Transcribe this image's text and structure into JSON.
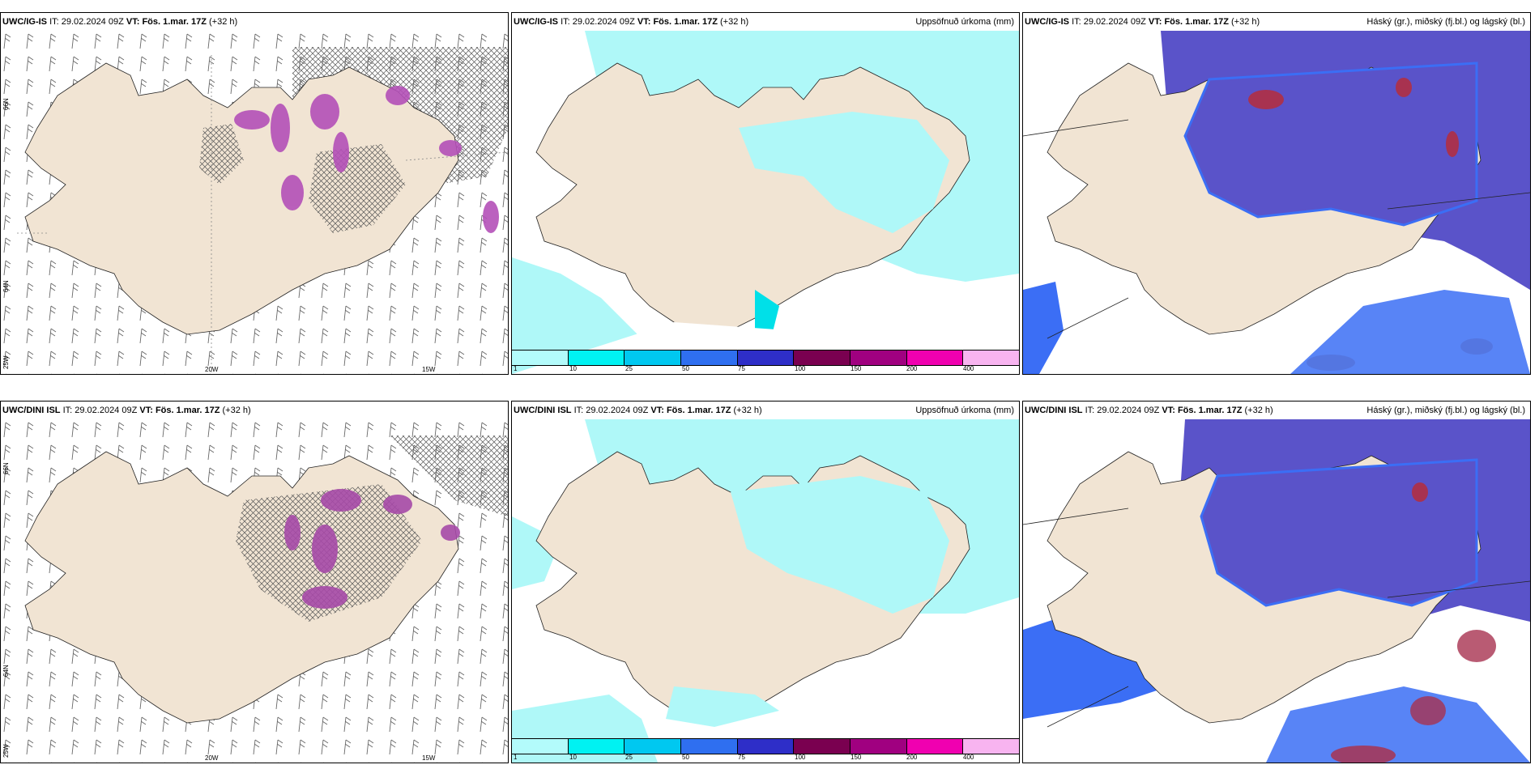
{
  "panels": [
    {
      "model": "UWC/IG-IS",
      "it_label": "IT:",
      "it": "29.02.2024 09Z",
      "vt_label": "VT:",
      "vt": "Fös. 1.mar. 17Z",
      "lead": "(+32 h)",
      "right_title": ""
    },
    {
      "model": "UWC/IG-IS",
      "it_label": "IT:",
      "it": "29.02.2024 09Z",
      "vt_label": "VT:",
      "vt": "Fös. 1.mar. 17Z",
      "lead": "(+32 h)",
      "right_title": "Uppsöfnuð úrkoma (mm)"
    },
    {
      "model": "UWC/IG-IS",
      "it_label": "IT:",
      "it": "29.02.2024 09Z",
      "vt_label": "VT:",
      "vt": "Fös. 1.mar. 17Z",
      "lead": "(+32 h)",
      "right_title": "Háský (gr.), miðský (fj.bl.) og lágský (bl.)"
    },
    {
      "model": "UWC/DINI ISL",
      "it_label": "IT:",
      "it": "29.02.2024 09Z",
      "vt_label": "VT:",
      "vt": "Fös. 1.mar. 17Z",
      "lead": "(+32 h)",
      "right_title": ""
    },
    {
      "model": "UWC/DINI ISL",
      "it_label": "IT:",
      "it": "29.02.2024 09Z",
      "vt_label": "VT:",
      "vt": "Fös. 1.mar. 17Z",
      "lead": "(+32 h)",
      "right_title": "Uppsöfnuð úrkoma (mm)"
    },
    {
      "model": "UWC/DINI ISL",
      "it_label": "IT:",
      "it": "29.02.2024 09Z",
      "vt_label": "VT:",
      "vt": "Fös. 1.mar. 17Z",
      "lead": "(+32 h)",
      "right_title": "Háský (gr.), miðský (fj.bl.) og lágský (bl.)"
    }
  ],
  "axes": {
    "lat_66": "66N",
    "lat_64": "64N",
    "lon_25": "25W",
    "lon_20": "20W",
    "lon_15": "15W"
  },
  "legend": {
    "ticks": [
      "1",
      "10",
      "25",
      "50",
      "75",
      "100",
      "150",
      "200",
      "400"
    ],
    "colors": [
      "#b3fbfb",
      "#00f2f2",
      "#00c8f0",
      "#2f6ff0",
      "#2e2ec8",
      "#7a0050",
      "#a00080",
      "#f000b0",
      "#f8b4f0"
    ]
  },
  "colors": {
    "land": "#f1e4d3",
    "precip_light": "#aff8f8",
    "cloud_high": "#5a53c9",
    "cloud_mid": "#3b6ef5",
    "cloud_red": "#a83250",
    "wind_barb": "#555555",
    "snow_purple": "#a64aa8"
  }
}
